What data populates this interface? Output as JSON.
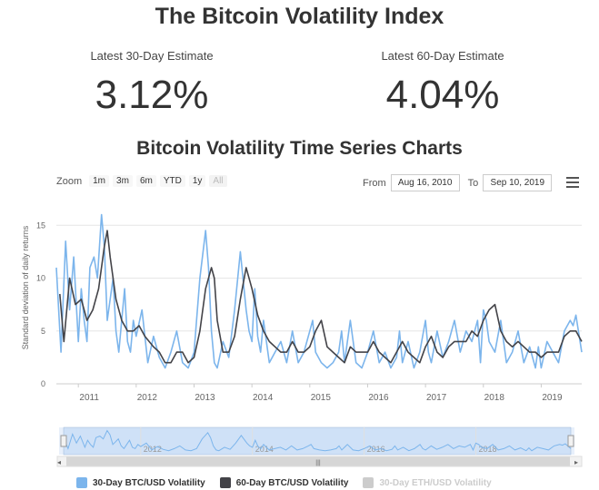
{
  "header": {
    "title": "The Bitcoin Volatility Index",
    "estimate_30_label": "Latest 30-Day Estimate",
    "estimate_30_value": "3.12%",
    "estimate_60_label": "Latest 60-Day Estimate",
    "estimate_60_value": "4.04%",
    "subtitle": "Bitcoin Volatility Time Series Charts"
  },
  "range_selector": {
    "zoom_label": "Zoom",
    "buttons": [
      "1m",
      "3m",
      "6m",
      "YTD",
      "1y",
      "All"
    ],
    "selected": "All",
    "from_label": "From",
    "from_value": "Aug 16, 2010",
    "to_label": "To",
    "to_value": "Sep 10, 2019"
  },
  "menu_icon": "hamburger-menu-icon",
  "colors": {
    "btc30": "#7cb5ec",
    "btc60": "#434348",
    "eth30": "#cccccc",
    "navigator_fill": "#cfe1f7",
    "navigator_line": "#7cb5ec"
  },
  "chart_data": {
    "type": "line",
    "ylabel": "Standard deviation of daily returns",
    "ylim": [
      0,
      17
    ],
    "yticks": [
      0,
      5,
      10,
      15
    ],
    "xlim": [
      2010.62,
      2019.7
    ],
    "xticks": [
      "2011",
      "2012",
      "2013",
      "2014",
      "2015",
      "2016",
      "2017",
      "2018",
      "2019"
    ],
    "navigator_ticks": [
      "2012",
      "2014",
      "2016",
      "2018"
    ],
    "grid": true,
    "legend_placement": "bottom",
    "series": [
      {
        "name": "30-Day BTC/USD Volatility",
        "color": "#7cb5ec",
        "visible": true,
        "x": [
          2010.62,
          2010.7,
          2010.78,
          2010.85,
          2010.92,
          2011.0,
          2011.05,
          2011.1,
          2011.15,
          2011.2,
          2011.27,
          2011.33,
          2011.4,
          2011.45,
          2011.5,
          2011.55,
          2011.6,
          2011.65,
          2011.7,
          2011.75,
          2011.8,
          2011.85,
          2011.9,
          2011.95,
          2012.0,
          2012.1,
          2012.2,
          2012.3,
          2012.4,
          2012.5,
          2012.6,
          2012.7,
          2012.8,
          2012.9,
          2013.0,
          2013.1,
          2013.2,
          2013.25,
          2013.3,
          2013.35,
          2013.4,
          2013.5,
          2013.6,
          2013.7,
          2013.8,
          2013.9,
          2013.95,
          2014.0,
          2014.05,
          2014.1,
          2014.15,
          2014.2,
          2014.3,
          2014.4,
          2014.5,
          2014.6,
          2014.7,
          2014.8,
          2014.9,
          2015.0,
          2015.05,
          2015.1,
          2015.2,
          2015.3,
          2015.4,
          2015.5,
          2015.55,
          2015.6,
          2015.7,
          2015.8,
          2015.9,
          2016.0,
          2016.1,
          2016.2,
          2016.3,
          2016.4,
          2016.5,
          2016.55,
          2016.6,
          2016.7,
          2016.8,
          2016.9,
          2017.0,
          2017.05,
          2017.1,
          2017.2,
          2017.3,
          2017.4,
          2017.5,
          2017.6,
          2017.7,
          2017.8,
          2017.9,
          2017.95,
          2018.0,
          2018.05,
          2018.1,
          2018.2,
          2018.3,
          2018.4,
          2018.5,
          2018.6,
          2018.7,
          2018.8,
          2018.9,
          2018.95,
          2019.0,
          2019.1,
          2019.2,
          2019.3,
          2019.4,
          2019.5,
          2019.55,
          2019.6,
          2019.7
        ],
        "y": [
          11,
          3,
          13.5,
          7,
          12,
          4,
          9,
          6,
          4,
          11,
          12,
          10,
          16,
          13,
          6,
          8,
          10,
          5,
          3,
          6,
          9,
          4,
          3,
          6,
          4.5,
          7,
          2,
          4.5,
          2.5,
          1.5,
          3,
          5,
          2,
          1.5,
          3,
          10,
          14.5,
          11,
          5,
          2,
          1.5,
          4,
          2.5,
          7,
          12.5,
          7,
          5,
          4,
          9,
          4.5,
          3,
          6,
          2,
          3,
          4,
          2,
          5,
          2,
          3,
          5,
          6,
          3,
          2,
          1.5,
          2,
          3,
          5,
          2,
          6,
          2,
          1.5,
          3,
          5,
          2,
          3,
          1.5,
          2.5,
          5,
          2,
          4,
          1.5,
          3,
          6,
          3,
          2,
          5,
          2.5,
          4,
          6,
          3,
          5,
          4,
          6,
          2,
          7,
          6,
          4,
          3,
          6,
          2,
          3,
          5,
          2,
          3.5,
          1.5,
          3.5,
          1.5,
          4,
          3,
          2,
          5,
          6,
          5.5,
          6.5,
          3
        ]
      },
      {
        "name": "60-Day BTC/USD Volatility",
        "color": "#434348",
        "visible": true,
        "x": [
          2010.68,
          2010.75,
          2010.85,
          2010.95,
          2011.05,
          2011.15,
          2011.25,
          2011.35,
          2011.45,
          2011.5,
          2011.55,
          2011.65,
          2011.75,
          2011.85,
          2011.95,
          2012.05,
          2012.15,
          2012.3,
          2012.4,
          2012.5,
          2012.6,
          2012.7,
          2012.8,
          2012.9,
          2013.0,
          2013.1,
          2013.2,
          2013.3,
          2013.35,
          2013.4,
          2013.5,
          2013.6,
          2013.7,
          2013.8,
          2013.9,
          2014.0,
          2014.1,
          2014.2,
          2014.3,
          2014.4,
          2014.5,
          2014.6,
          2014.7,
          2014.8,
          2014.9,
          2015.0,
          2015.1,
          2015.2,
          2015.3,
          2015.4,
          2015.5,
          2015.6,
          2015.7,
          2015.8,
          2015.9,
          2016.0,
          2016.1,
          2016.2,
          2016.3,
          2016.4,
          2016.5,
          2016.6,
          2016.7,
          2016.8,
          2016.9,
          2017.0,
          2017.1,
          2017.2,
          2017.3,
          2017.4,
          2017.5,
          2017.6,
          2017.7,
          2017.8,
          2017.9,
          2018.0,
          2018.1,
          2018.2,
          2018.3,
          2018.4,
          2018.5,
          2018.6,
          2018.7,
          2018.8,
          2018.9,
          2019.0,
          2019.1,
          2019.2,
          2019.3,
          2019.4,
          2019.5,
          2019.6,
          2019.7
        ],
        "y": [
          8.5,
          4,
          10,
          7.5,
          8,
          6,
          7,
          9,
          13,
          14.5,
          12,
          8,
          6,
          5,
          5,
          5.5,
          4.5,
          3.5,
          3,
          2,
          2,
          3,
          3,
          2,
          2.5,
          5,
          9,
          11,
          10,
          6,
          3,
          3,
          4.5,
          8,
          11,
          9,
          6.5,
          5,
          4,
          3.5,
          3,
          3,
          4,
          3,
          3,
          3.5,
          5,
          6,
          3.5,
          3,
          2.5,
          2,
          3.5,
          3,
          3,
          3,
          4,
          3,
          2.5,
          2,
          3,
          4,
          3,
          2.5,
          2,
          3.5,
          4.5,
          3,
          2.5,
          3.5,
          4,
          4,
          4,
          5,
          4.5,
          6,
          7,
          7.5,
          5,
          4,
          3.5,
          4,
          3.5,
          3,
          3,
          2.5,
          3,
          3,
          3,
          4.5,
          5,
          5,
          4
        ]
      },
      {
        "name": "30-Day ETH/USD Volatility",
        "color": "#cccccc",
        "visible": false
      }
    ]
  }
}
